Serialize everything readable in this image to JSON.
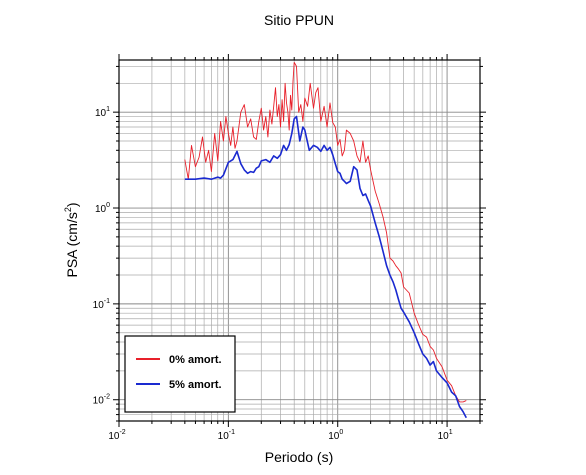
{
  "chart_data": {
    "type": "line",
    "title": "Sitio PPUN",
    "xlabel": "Periodo (s)",
    "ylabel": "PSA (cm/s",
    "ylabel_exp": "2",
    "ylabel_close": ")",
    "x_scale": "log",
    "y_scale": "log",
    "xlim": [
      0.01,
      20
    ],
    "ylim": [
      0.006,
      35
    ],
    "grid": true,
    "legend_position": "bottom-left",
    "x_ticks": [
      {
        "base": "10",
        "exp": "-2"
      },
      {
        "base": "10",
        "exp": "-1"
      },
      {
        "base": "10",
        "exp": "0"
      },
      {
        "base": "10",
        "exp": "1"
      }
    ],
    "y_ticks": [
      {
        "base": "10",
        "exp": "-2"
      },
      {
        "base": "10",
        "exp": "-1"
      },
      {
        "base": "10",
        "exp": "0"
      },
      {
        "base": "10",
        "exp": "1"
      }
    ],
    "series": [
      {
        "name": "0% amort.",
        "color": "#e8202a",
        "x": [
          0.04,
          0.043,
          0.046,
          0.05,
          0.054,
          0.058,
          0.062,
          0.066,
          0.07,
          0.075,
          0.08,
          0.085,
          0.09,
          0.095,
          0.1,
          0.105,
          0.11,
          0.115,
          0.12,
          0.13,
          0.14,
          0.15,
          0.16,
          0.17,
          0.18,
          0.19,
          0.2,
          0.21,
          0.22,
          0.23,
          0.24,
          0.25,
          0.26,
          0.27,
          0.28,
          0.29,
          0.3,
          0.31,
          0.32,
          0.33,
          0.34,
          0.35,
          0.36,
          0.37,
          0.38,
          0.39,
          0.4,
          0.42,
          0.44,
          0.46,
          0.48,
          0.5,
          0.53,
          0.56,
          0.6,
          0.63,
          0.66,
          0.7,
          0.75,
          0.8,
          0.85,
          0.9,
          0.95,
          1.0,
          1.05,
          1.1,
          1.15,
          1.2,
          1.3,
          1.4,
          1.5,
          1.6,
          1.7,
          1.8,
          1.9,
          2.0,
          2.2,
          2.4,
          2.6,
          2.8,
          3.0,
          3.2,
          3.4,
          3.6,
          3.8,
          4.0,
          4.5,
          5.0,
          5.5,
          6.0,
          6.5,
          7.0,
          7.5,
          8.0,
          9.0,
          10.0,
          11.0,
          12.0,
          13.0,
          14.0,
          15.0
        ],
        "y": [
          3.2,
          2.0,
          4.5,
          2.7,
          3.4,
          5.5,
          3.0,
          4.0,
          2.4,
          6.0,
          3.1,
          8.0,
          5.0,
          9.0,
          6.0,
          4.5,
          7.0,
          4.2,
          5.0,
          10.0,
          12.0,
          7.0,
          8.5,
          5.5,
          5.2,
          8.0,
          11.0,
          6.5,
          9.0,
          5.5,
          10.5,
          7.5,
          11.5,
          18.0,
          9.0,
          12.0,
          7.0,
          13.5,
          8.0,
          20.0,
          12.5,
          10.0,
          6.5,
          15.0,
          10.5,
          21.0,
          33.0,
          30.0,
          10.0,
          12.0,
          8.0,
          14.0,
          11.5,
          20.0,
          11.0,
          16.0,
          18.0,
          8.0,
          11.5,
          7.0,
          12.5,
          7.8,
          7.0,
          4.5,
          5.2,
          3.5,
          4.0,
          6.5,
          6.0,
          5.0,
          3.5,
          3.0,
          5.0,
          3.0,
          3.5,
          2.5,
          1.5,
          1.1,
          0.8,
          0.55,
          0.3,
          0.28,
          0.25,
          0.23,
          0.21,
          0.15,
          0.13,
          0.08,
          0.06,
          0.048,
          0.045,
          0.036,
          0.033,
          0.027,
          0.022,
          0.016,
          0.014,
          0.011,
          0.0095,
          0.0095,
          0.0098
        ]
      },
      {
        "name": "5% amort.",
        "color": "#1a2ad0",
        "x": [
          0.04,
          0.05,
          0.06,
          0.07,
          0.08,
          0.085,
          0.09,
          0.1,
          0.11,
          0.12,
          0.13,
          0.14,
          0.15,
          0.16,
          0.17,
          0.18,
          0.19,
          0.2,
          0.22,
          0.24,
          0.26,
          0.28,
          0.3,
          0.32,
          0.34,
          0.36,
          0.38,
          0.4,
          0.42,
          0.45,
          0.48,
          0.5,
          0.55,
          0.6,
          0.65,
          0.7,
          0.75,
          0.8,
          0.85,
          0.9,
          0.95,
          1.0,
          1.05,
          1.1,
          1.15,
          1.2,
          1.3,
          1.4,
          1.5,
          1.6,
          1.7,
          1.8,
          1.9,
          2.0,
          2.2,
          2.4,
          2.6,
          2.8,
          3.0,
          3.2,
          3.4,
          3.6,
          3.8,
          4.0,
          4.5,
          5.0,
          5.5,
          6.0,
          6.5,
          7.0,
          7.5,
          8.0,
          9.0,
          10.0,
          11.0,
          12.0,
          13.0,
          14.0,
          15.0
        ],
        "y": [
          2.0,
          2.0,
          2.05,
          2.0,
          2.1,
          2.05,
          2.2,
          3.0,
          3.2,
          3.9,
          2.9,
          2.5,
          2.3,
          2.4,
          2.35,
          2.6,
          2.7,
          3.1,
          3.2,
          3.0,
          3.5,
          3.3,
          3.6,
          4.5,
          4.0,
          4.6,
          6.0,
          8.5,
          9.0,
          5.0,
          7.0,
          6.5,
          4.0,
          4.5,
          4.3,
          3.9,
          4.5,
          4.0,
          4.3,
          3.6,
          2.9,
          2.4,
          2.3,
          2.0,
          1.9,
          1.8,
          1.9,
          2.7,
          2.5,
          1.6,
          1.35,
          1.4,
          1.2,
          1.05,
          0.7,
          0.5,
          0.35,
          0.25,
          0.2,
          0.17,
          0.14,
          0.11,
          0.09,
          0.082,
          0.065,
          0.05,
          0.038,
          0.03,
          0.027,
          0.023,
          0.025,
          0.02,
          0.017,
          0.015,
          0.012,
          0.011,
          0.0085,
          0.0075,
          0.0065
        ]
      }
    ]
  }
}
